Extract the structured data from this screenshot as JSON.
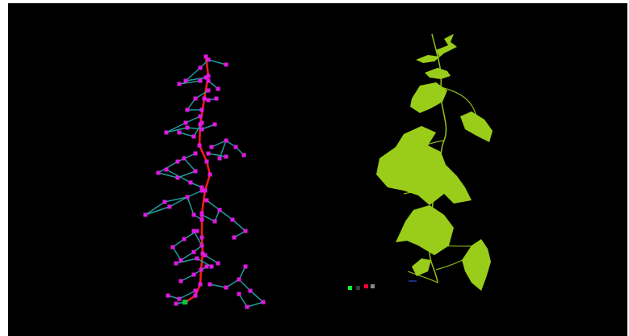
{
  "viewport": {
    "background": "#000000",
    "page_background": "#ffffff"
  },
  "skeleton_view": {
    "stem_color": "#ff1a1a",
    "edge_color": "#1f9c9c",
    "node_color": "#e01ae0",
    "root_color": "#00cc33"
  },
  "plant_view": {
    "leaf_color": "#9acd1a",
    "stem_color": "#8fb818"
  },
  "axis_gizmo": {
    "colors": [
      "#00ff33",
      "#3a3a3a",
      "#ff0033",
      "#8a8a8a"
    ]
  }
}
